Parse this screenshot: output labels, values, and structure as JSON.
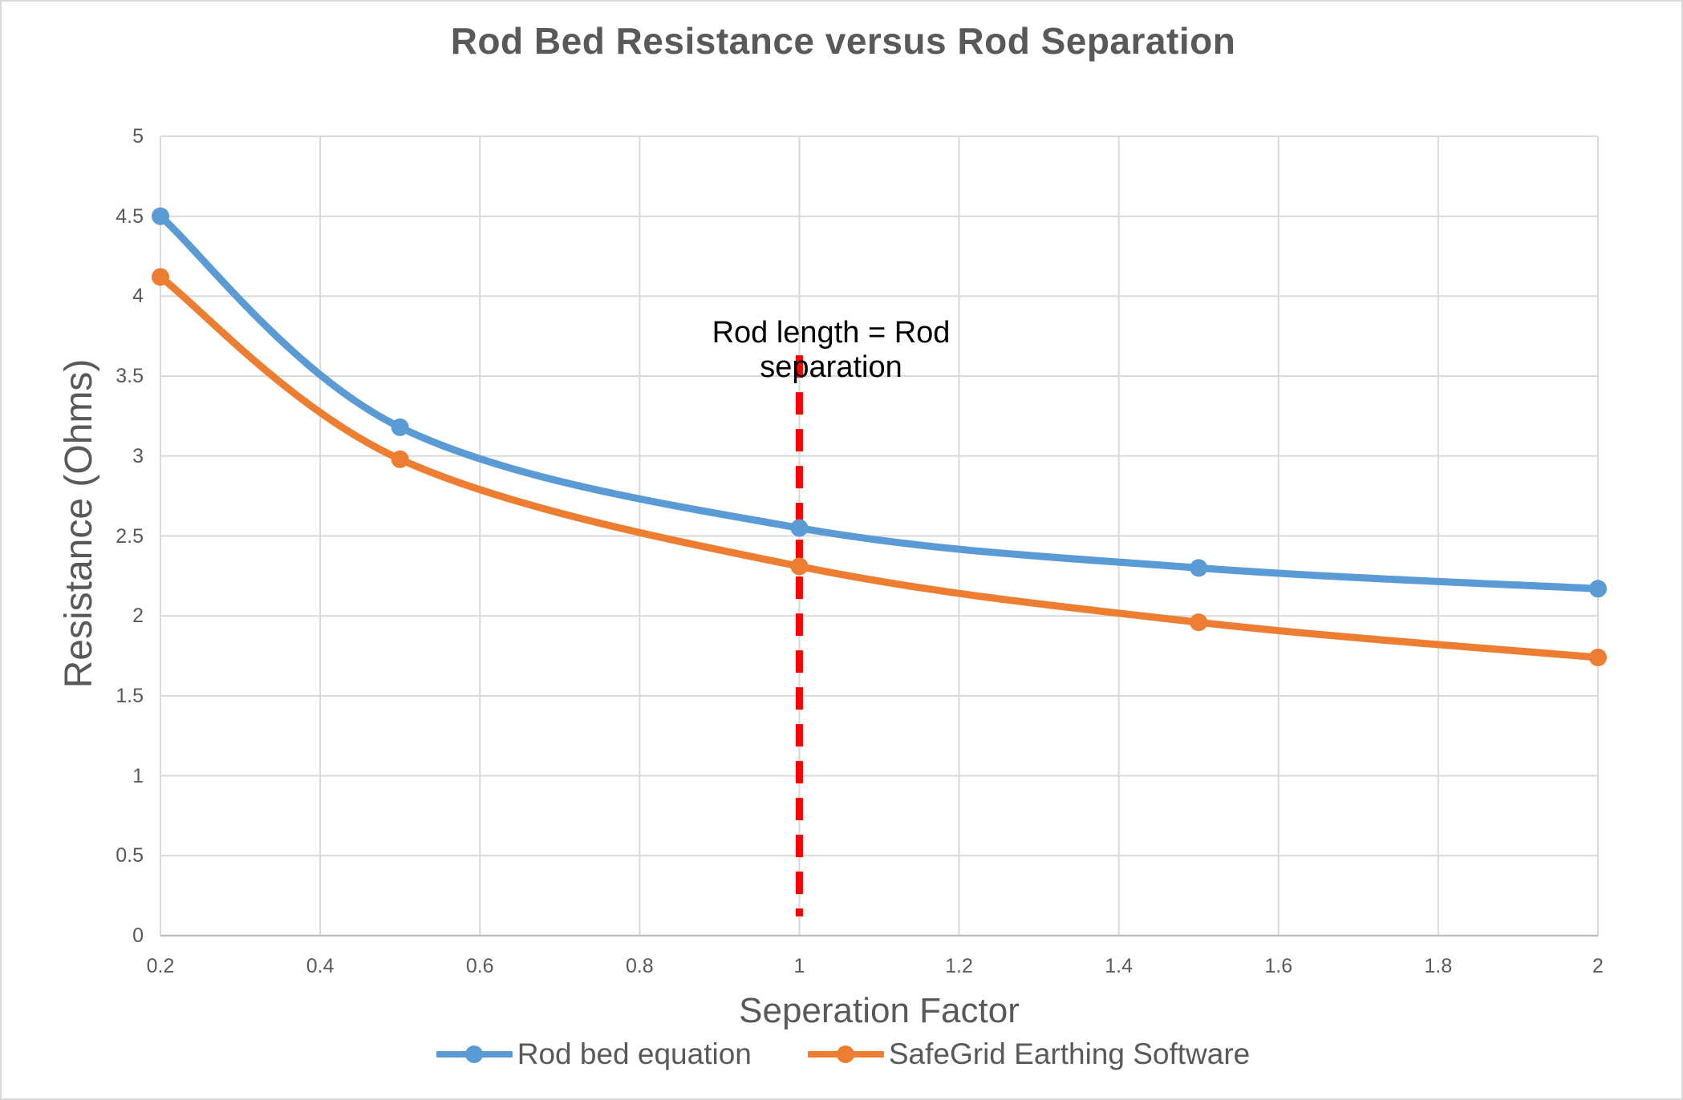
{
  "page": {
    "background": "#FFFFFF",
    "border_color": "#D9D9D9"
  },
  "chart_data": {
    "type": "line",
    "title": "Rod Bed Resistance versus Rod Separation",
    "xlabel": "Seperation Factor",
    "ylabel": "Resistance (Ohms)",
    "x": [
      0.2,
      0.5,
      1,
      1.5,
      2
    ],
    "series": [
      {
        "name": "Rod bed equation",
        "color": "#5B9BD5",
        "values": [
          4.5,
          3.18,
          2.55,
          2.3,
          2.17
        ]
      },
      {
        "name": "SafeGrid Earthing Software",
        "color": "#ED7D31",
        "values": [
          4.12,
          2.98,
          2.31,
          1.96,
          1.74
        ]
      }
    ],
    "xlim": [
      0.2,
      2
    ],
    "ylim": [
      0,
      5
    ],
    "x_ticks": [
      "0.2",
      "0.4",
      "0.6",
      "0.8",
      "1",
      "1.2",
      "1.4",
      "1.6",
      "1.8",
      "2"
    ],
    "y_ticks": [
      "0",
      "0.5",
      "1",
      "1.5",
      "2",
      "2.5",
      "3",
      "3.5",
      "4",
      "4.5",
      "5"
    ],
    "grid": true,
    "gridline_color": "#D9D9D9",
    "axis_line_color": "#BFBFBF",
    "text_color": "#595959",
    "legend_position": "bottom",
    "smooth": true,
    "marker": "circle",
    "annotation": {
      "text": "Rod length = Rod separation",
      "color": "#000000",
      "at_x": 1
    },
    "reference_line": {
      "x": 1,
      "color": "#FF0000",
      "style": "dashed",
      "y_start": 0.12,
      "y_end": 3.63
    }
  }
}
